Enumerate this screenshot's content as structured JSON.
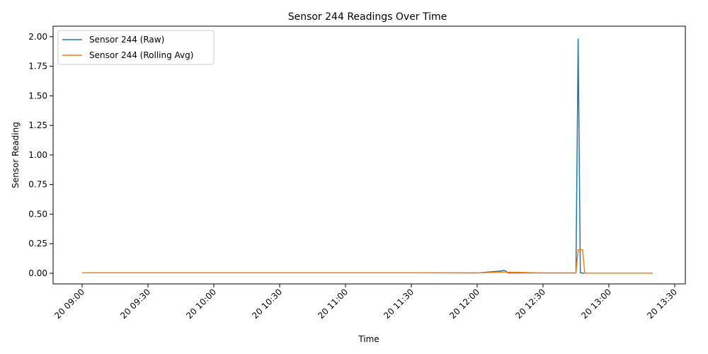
{
  "chart_data": {
    "type": "line",
    "title": "Sensor 244 Readings Over Time",
    "xlabel": "Time",
    "ylabel": "Sensor Reading",
    "x_range": [
      "20 09:00",
      "20 13:20"
    ],
    "ylim": [
      -0.1,
      2.08
    ],
    "grid": false,
    "legend": "top-left",
    "x_ticks": [
      "20 09:00",
      "20 09:30",
      "20 10:00",
      "20 10:30",
      "20 11:00",
      "20 11:30",
      "20 12:00",
      "20 12:30",
      "20 13:00",
      "20 13:30"
    ],
    "y_ticks": [
      "0.00",
      "0.25",
      "0.50",
      "0.75",
      "1.00",
      "1.25",
      "1.50",
      "1.75",
      "2.00"
    ],
    "colors": {
      "raw": "#1f77b4",
      "avg": "#ff7f0e"
    },
    "series": [
      {
        "name": "Sensor 244 (Raw)",
        "x": [
          "20 09:00",
          "20 11:15",
          "20 11:30",
          "20 12:00",
          "20 12:11",
          "20 12:12",
          "20 12:13",
          "20 12:14",
          "20 12:30",
          "20 12:45",
          "20 12:46",
          "20 12:47",
          "20 12:48",
          "20 13:00",
          "20 13:20"
        ],
        "y": [
          0.005,
          0.005,
          0.004,
          0.003,
          0.02,
          0.025,
          0.02,
          0.003,
          0.003,
          0.003,
          1.98,
          0.004,
          0.002,
          0.002,
          0.002
        ]
      },
      {
        "name": "Sensor 244 (Rolling Avg)",
        "x": [
          "20 09:00",
          "20 11:15",
          "20 11:30",
          "20 12:00",
          "20 12:12",
          "20 12:30",
          "20 12:45",
          "20 12:46",
          "20 12:47",
          "20 12:48",
          "20 12:49",
          "20 13:00",
          "20 13:20"
        ],
        "y": [
          0.005,
          0.005,
          0.004,
          0.003,
          0.01,
          0.003,
          0.003,
          0.2,
          0.2,
          0.2,
          0.002,
          0.002,
          0.002
        ]
      }
    ]
  }
}
